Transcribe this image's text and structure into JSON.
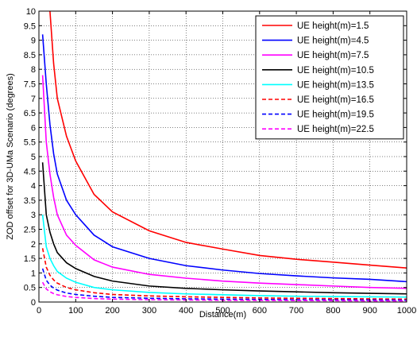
{
  "chart_data": {
    "type": "line",
    "title": "",
    "xlabel": "Distance(m)",
    "ylabel": "ZOD offset for 3D-UMa Scenario (degrees)",
    "xlim": [
      0,
      1000
    ],
    "ylim": [
      0,
      10
    ],
    "xticks": [
      0,
      100,
      200,
      300,
      400,
      500,
      600,
      700,
      800,
      900,
      1000
    ],
    "yticks": [
      0,
      0.5,
      1,
      1.5,
      2,
      2.5,
      3,
      3.5,
      4,
      4.5,
      5,
      5.5,
      6,
      6.5,
      7,
      7.5,
      8,
      8.5,
      9,
      9.5,
      10
    ],
    "xtick_labels": [
      "0",
      "100",
      "200",
      "300",
      "400",
      "500",
      "600",
      "700",
      "800",
      "900",
      "1000"
    ],
    "ytick_labels": [
      "0",
      "0.5",
      "1",
      "1.5",
      "2",
      "2.5",
      "3",
      "3.5",
      "4",
      "4.5",
      "5",
      "5.5",
      "6",
      "6.5",
      "7",
      "7.5",
      "8",
      "8.5",
      "9",
      "9.5",
      "10"
    ],
    "grid": true,
    "legend_position": "top-right",
    "x": [
      10,
      20,
      30,
      40,
      50,
      75,
      100,
      150,
      200,
      300,
      400,
      500,
      600,
      700,
      800,
      900,
      1000
    ],
    "series": [
      {
        "name": "UE height(m)=1.5",
        "color": "#ff0000",
        "style": "solid",
        "values": [
          null,
          null,
          10.0,
          8.2,
          7.0,
          5.7,
          4.85,
          3.7,
          3.1,
          2.45,
          2.05,
          1.82,
          1.6,
          1.47,
          1.37,
          1.27,
          1.17
        ]
      },
      {
        "name": "UE height(m)=4.5",
        "color": "#0000ff",
        "style": "solid",
        "values": [
          9.2,
          7.5,
          6.1,
          5.1,
          4.4,
          3.5,
          3.0,
          2.3,
          1.9,
          1.5,
          1.25,
          1.1,
          0.98,
          0.9,
          0.83,
          0.78,
          0.7
        ]
      },
      {
        "name": "UE height(m)=7.5",
        "color": "#ff00ff",
        "style": "solid",
        "values": [
          7.8,
          5.5,
          4.4,
          3.6,
          3.0,
          2.3,
          1.95,
          1.45,
          1.2,
          0.95,
          0.82,
          0.72,
          0.65,
          0.6,
          0.55,
          0.5,
          0.47
        ]
      },
      {
        "name": "UE height(m)=10.5",
        "color": "#000000",
        "style": "solid",
        "values": [
          4.8,
          3.0,
          2.4,
          2.0,
          1.7,
          1.35,
          1.15,
          0.88,
          0.72,
          0.55,
          0.47,
          0.42,
          0.38,
          0.35,
          0.32,
          0.3,
          0.28
        ]
      },
      {
        "name": "UE height(m)=13.5",
        "color": "#00ffff",
        "style": "solid",
        "values": [
          3.0,
          1.9,
          1.5,
          1.25,
          1.05,
          0.82,
          0.68,
          0.5,
          0.42,
          0.33,
          0.28,
          0.25,
          0.22,
          0.2,
          0.19,
          0.18,
          0.17
        ]
      },
      {
        "name": "UE height(m)=16.5",
        "color": "#ff0000",
        "style": "dashed",
        "values": [
          1.85,
          1.2,
          0.92,
          0.76,
          0.65,
          0.5,
          0.42,
          0.32,
          0.26,
          0.21,
          0.18,
          0.16,
          0.14,
          0.13,
          0.12,
          0.11,
          0.1
        ]
      },
      {
        "name": "UE height(m)=19.5",
        "color": "#0000ff",
        "style": "dashed",
        "values": [
          1.15,
          0.75,
          0.58,
          0.48,
          0.41,
          0.31,
          0.26,
          0.2,
          0.16,
          0.13,
          0.11,
          0.1,
          0.09,
          0.08,
          0.075,
          0.07,
          0.065
        ]
      },
      {
        "name": "UE height(m)=22.5",
        "color": "#ff00ff",
        "style": "dashed",
        "values": [
          0.68,
          0.45,
          0.35,
          0.29,
          0.25,
          0.19,
          0.16,
          0.12,
          0.1,
          0.08,
          0.07,
          0.06,
          0.055,
          0.05,
          0.045,
          0.04,
          0.04
        ]
      }
    ]
  }
}
